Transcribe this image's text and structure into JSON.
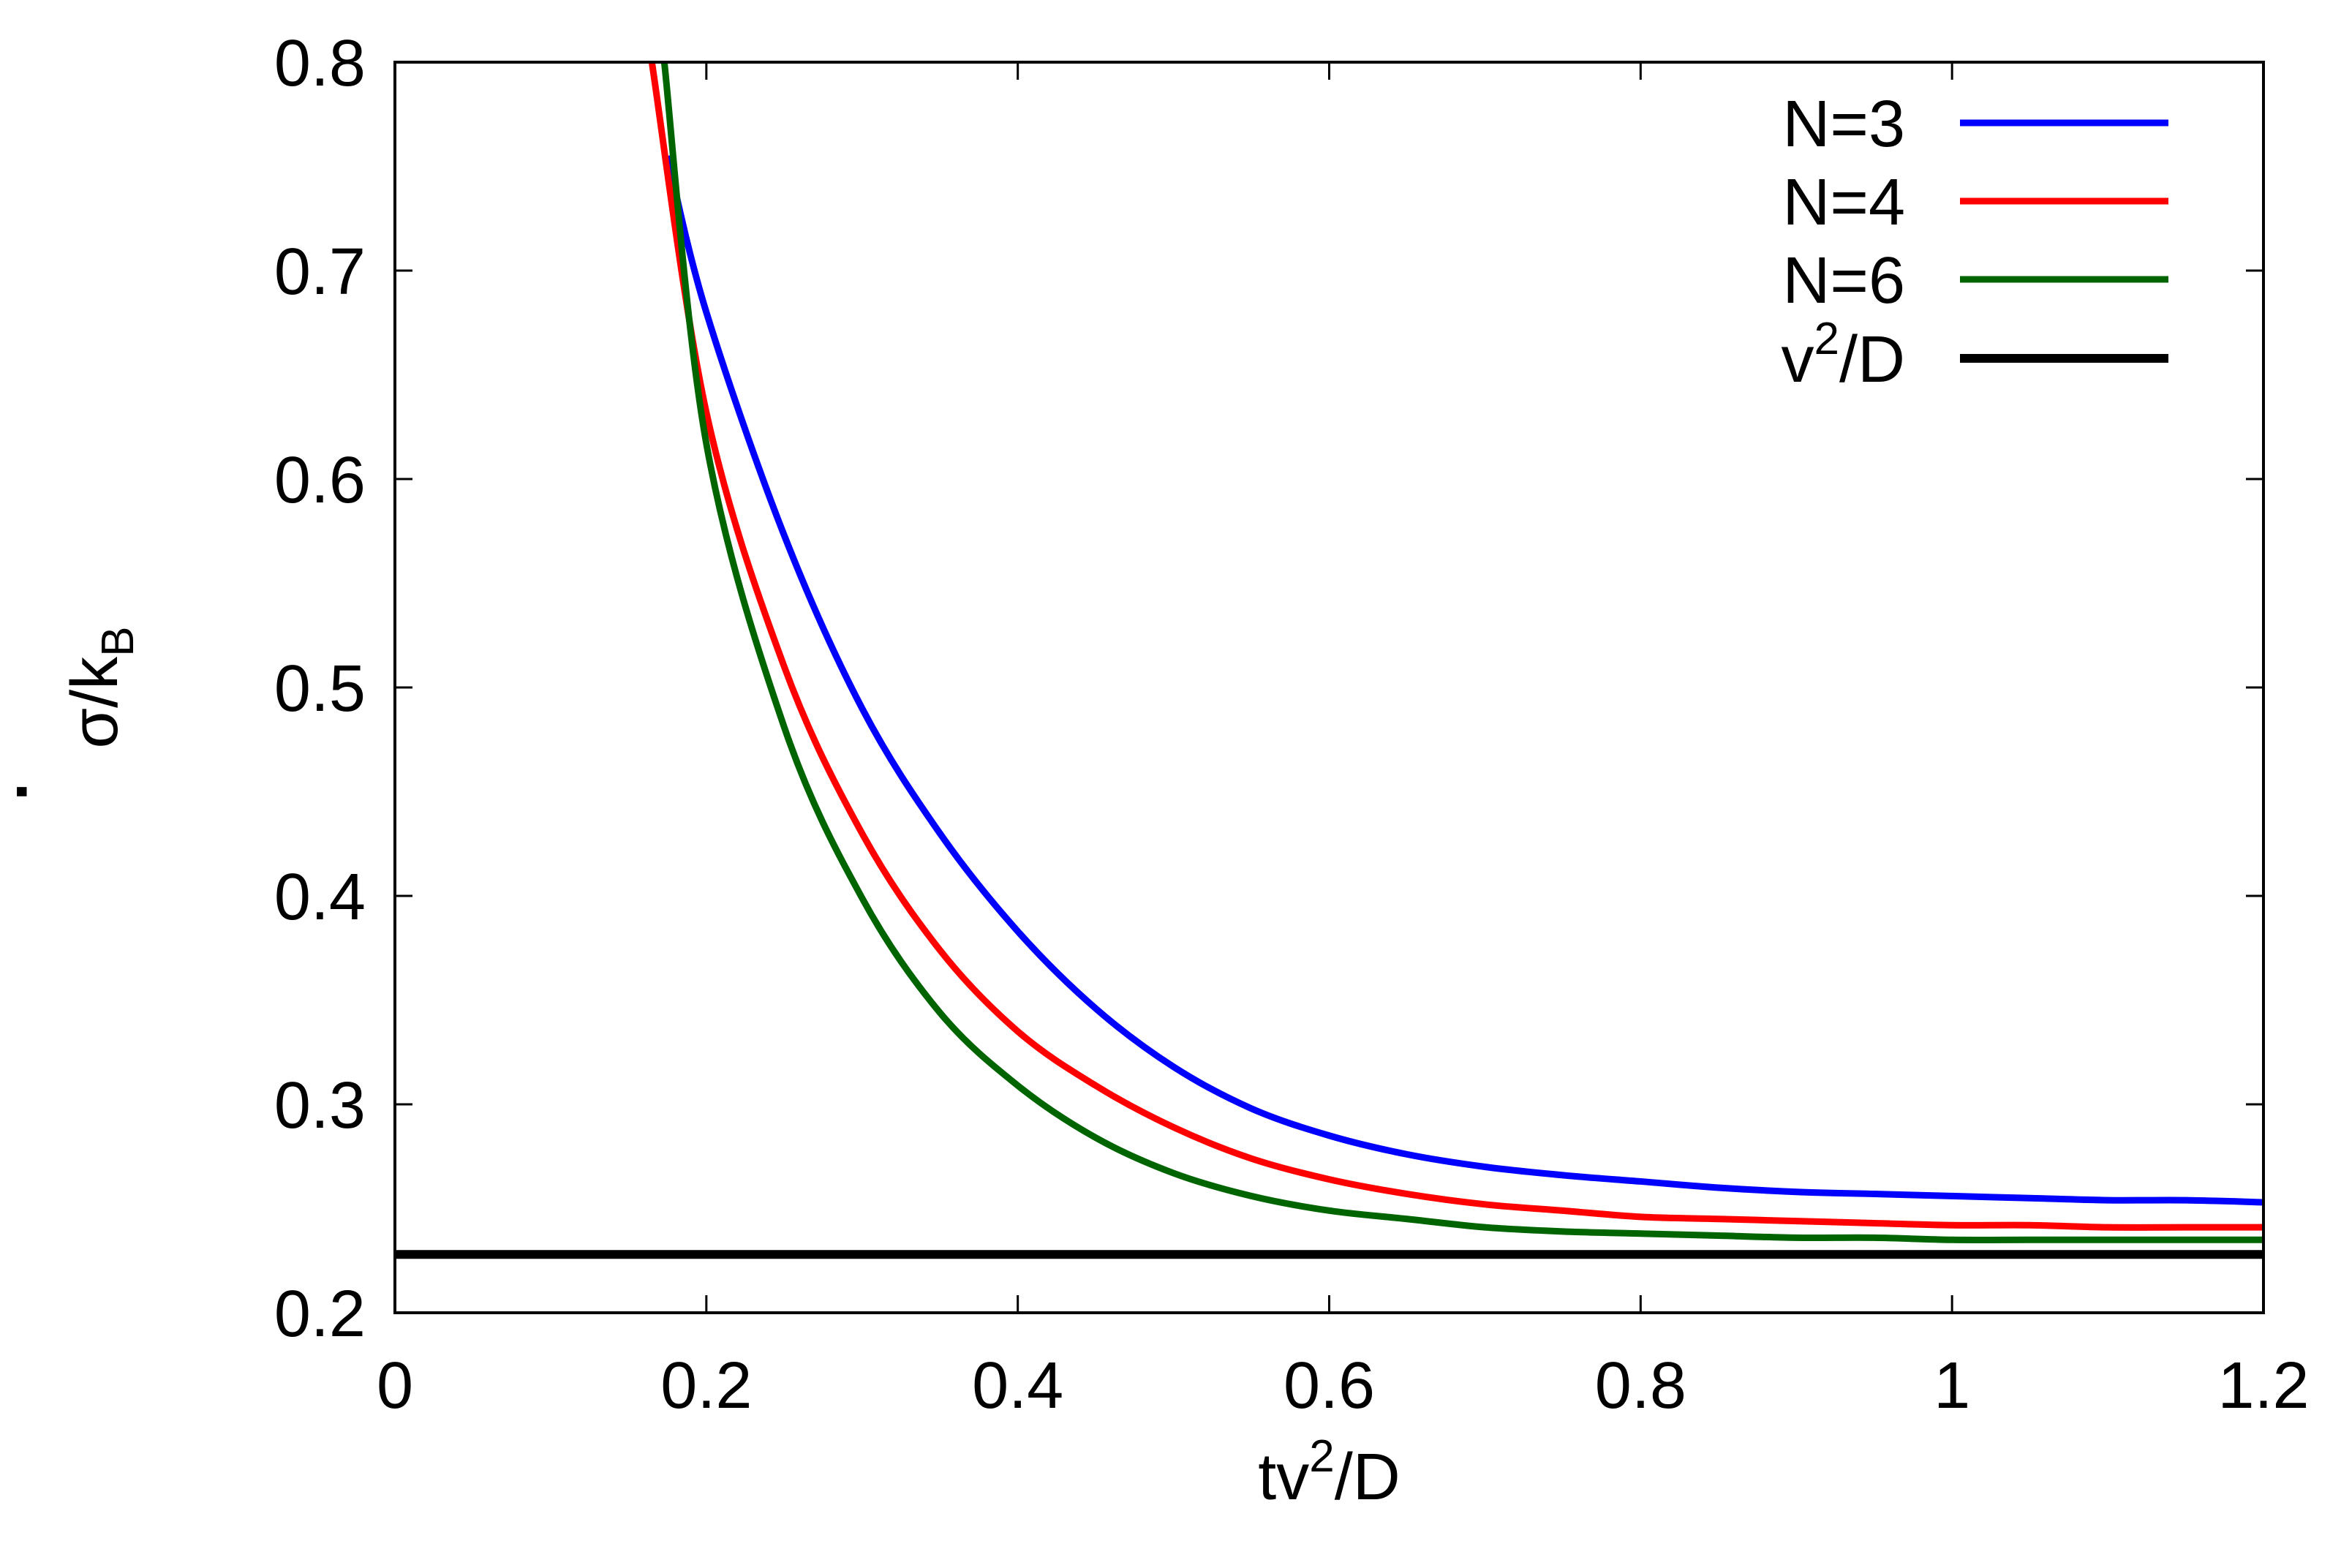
{
  "chart_data": {
    "type": "line",
    "title": "",
    "xlabel": {
      "base": "tv",
      "sup": "2",
      "rest": "/D"
    },
    "ylabel": {
      "dot": "·",
      "base": "σ/k",
      "sub": "B"
    },
    "xlim": [
      0,
      1.2
    ],
    "ylim": [
      0.2,
      0.8
    ],
    "xticks": [
      "0",
      "0.2",
      "0.4",
      "0.6",
      "0.8",
      "1",
      "1.2"
    ],
    "yticks": [
      "0.2",
      "0.3",
      "0.4",
      "0.5",
      "0.6",
      "0.7",
      "0.8"
    ],
    "grid": false,
    "legend_position": "top-right",
    "series": [
      {
        "name": "N=3",
        "color": "#0000ff",
        "x": [
          0.175,
          0.2,
          0.25,
          0.3,
          0.35,
          0.4,
          0.45,
          0.5,
          0.55,
          0.6,
          0.65,
          0.7,
          0.75,
          0.8,
          0.85,
          0.9,
          0.95,
          1.0,
          1.05,
          1.1,
          1.15,
          1.2
        ],
        "y": [
          0.755,
          0.68,
          0.573,
          0.49,
          0.43,
          0.383,
          0.346,
          0.318,
          0.298,
          0.285,
          0.276,
          0.27,
          0.266,
          0.263,
          0.26,
          0.258,
          0.257,
          0.256,
          0.255,
          0.254,
          0.254,
          0.253
        ]
      },
      {
        "name": "N=4",
        "color": "#ff0000",
        "x": [
          0.165,
          0.2,
          0.25,
          0.3,
          0.35,
          0.4,
          0.45,
          0.5,
          0.55,
          0.6,
          0.65,
          0.7,
          0.75,
          0.8,
          0.85,
          0.9,
          0.95,
          1.0,
          1.05,
          1.1,
          1.15,
          1.2
        ],
        "y": [
          0.8,
          0.632,
          0.51,
          0.43,
          0.374,
          0.335,
          0.309,
          0.289,
          0.274,
          0.264,
          0.257,
          0.252,
          0.249,
          0.246,
          0.245,
          0.244,
          0.243,
          0.242,
          0.242,
          0.241,
          0.241,
          0.241
        ]
      },
      {
        "name": "N=6",
        "color": "#006400",
        "x": [
          0.173,
          0.2,
          0.25,
          0.3,
          0.35,
          0.4,
          0.45,
          0.5,
          0.55,
          0.6,
          0.65,
          0.7,
          0.75,
          0.8,
          0.85,
          0.9,
          0.95,
          1.0,
          1.05,
          1.1,
          1.15,
          1.2
        ],
        "y": [
          0.8,
          0.617,
          0.481,
          0.399,
          0.344,
          0.309,
          0.284,
          0.267,
          0.256,
          0.249,
          0.245,
          0.241,
          0.239,
          0.238,
          0.237,
          0.236,
          0.236,
          0.235,
          0.235,
          0.235,
          0.235,
          0.235
        ]
      },
      {
        "name": {
          "base": "v",
          "sup": "2",
          "rest": "/D"
        },
        "color": "#000000",
        "x": [
          0,
          1.2
        ],
        "y": [
          0.228,
          0.228
        ]
      }
    ]
  }
}
